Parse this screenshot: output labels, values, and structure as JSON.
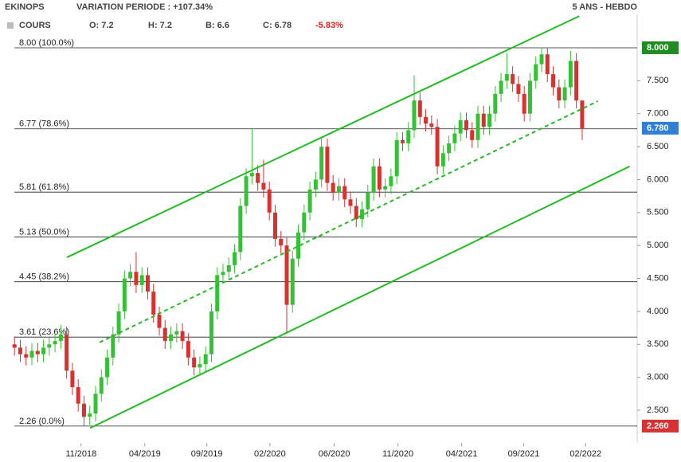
{
  "chart_data": {
    "type": "candlestick",
    "header": {
      "symbol": "EKINOPS",
      "variation": "VARIATION PERIODE : +107.34%",
      "period": "5 ANS - HEBDO",
      "series_label": "COURS",
      "open": "O: 7.2",
      "high": "H: 7.2",
      "low": "B: 6.6",
      "close": "C: 6.78",
      "change": "-5.83%"
    },
    "up_color": "#33c233",
    "down_color": "#d93030",
    "open": [
      3.5,
      3.45,
      3.35,
      3.3,
      3.4,
      3.35,
      3.45,
      3.5,
      3.55,
      3.65,
      3.1,
      2.85,
      2.6,
      2.4,
      2.45,
      2.75,
      3.0,
      3.3,
      3.65,
      4.0,
      4.5,
      4.6,
      4.4,
      4.55,
      4.3,
      3.95,
      3.75,
      3.55,
      3.65,
      3.7,
      3.55,
      3.3,
      3.15,
      3.2,
      3.35,
      4.0,
      4.55,
      4.6,
      4.7,
      4.9,
      5.6,
      6.05,
      6.1,
      5.95,
      5.85,
      5.5,
      5.1,
      5.0,
      4.1,
      4.8,
      5.2,
      5.5,
      5.85,
      6.0,
      6.5,
      5.95,
      5.8,
      5.9,
      5.7,
      5.6,
      5.4,
      5.55,
      5.8,
      6.2,
      5.85,
      5.9,
      6.05,
      6.6,
      6.55,
      6.75,
      7.2,
      6.95,
      6.85,
      6.8,
      6.2,
      6.4,
      6.55,
      6.7,
      6.9,
      6.75,
      6.6,
      7.0,
      6.8,
      7.0,
      7.3,
      7.5,
      7.6,
      7.45,
      7.3,
      7.0,
      7.5,
      7.75,
      7.9,
      7.6,
      7.4,
      7.2,
      7.4,
      7.8,
      7.2
    ],
    "high": [
      3.62,
      3.57,
      3.47,
      3.52,
      3.52,
      3.57,
      3.62,
      3.67,
      3.8,
      3.77,
      3.22,
      2.97,
      2.72,
      2.57,
      2.87,
      3.12,
      3.42,
      3.77,
      4.12,
      4.62,
      4.72,
      4.9,
      4.67,
      4.67,
      4.42,
      4.07,
      3.87,
      3.77,
      3.82,
      3.82,
      3.67,
      3.42,
      3.32,
      3.47,
      4.12,
      4.67,
      4.72,
      4.82,
      5.02,
      5.72,
      6.17,
      6.78,
      6.22,
      6.3,
      5.97,
      5.62,
      5.22,
      5.12,
      4.92,
      5.32,
      5.62,
      5.97,
      6.12,
      6.62,
      6.62,
      6.07,
      6.02,
      6.02,
      5.82,
      5.72,
      5.67,
      5.92,
      6.32,
      6.32,
      6.02,
      6.17,
      6.72,
      6.72,
      6.87,
      7.58,
      7.32,
      7.07,
      6.97,
      6.92,
      6.52,
      6.67,
      6.82,
      7.02,
      7.02,
      6.87,
      7.12,
      7.12,
      7.12,
      7.42,
      7.62,
      7.92,
      7.72,
      7.57,
      7.42,
      7.62,
      7.87,
      8.0,
      8.0,
      7.72,
      7.52,
      7.52,
      7.95,
      7.92,
      7.2
    ],
    "low": [
      3.33,
      3.23,
      3.18,
      3.18,
      3.23,
      3.23,
      3.33,
      3.38,
      3.43,
      2.98,
      2.73,
      2.48,
      2.26,
      2.28,
      2.33,
      2.63,
      2.88,
      3.18,
      3.53,
      3.88,
      4.38,
      4.28,
      4.28,
      4.18,
      3.83,
      3.63,
      3.43,
      3.43,
      3.53,
      3.43,
      3.18,
      3.03,
      3.03,
      3.08,
      3.23,
      3.88,
      4.43,
      4.48,
      4.58,
      4.78,
      5.48,
      5.93,
      5.83,
      5.73,
      5.38,
      4.98,
      4.88,
      3.68,
      3.98,
      4.68,
      5.08,
      5.38,
      5.73,
      5.88,
      5.83,
      5.68,
      5.68,
      5.58,
      5.48,
      5.28,
      5.28,
      5.43,
      5.68,
      5.73,
      5.73,
      5.78,
      5.93,
      6.43,
      6.43,
      6.63,
      6.83,
      6.73,
      6.68,
      6.08,
      6.08,
      6.28,
      6.43,
      6.58,
      6.63,
      6.48,
      6.48,
      6.68,
      6.68,
      6.88,
      7.18,
      7.38,
      7.33,
      7.18,
      6.88,
      6.88,
      7.38,
      7.63,
      7.48,
      7.28,
      7.08,
      7.08,
      7.28,
      7.08,
      6.6
    ],
    "close": [
      3.45,
      3.35,
      3.3,
      3.4,
      3.35,
      3.45,
      3.5,
      3.55,
      3.65,
      3.1,
      2.85,
      2.6,
      2.4,
      2.45,
      2.75,
      3.0,
      3.3,
      3.65,
      4.0,
      4.5,
      4.6,
      4.4,
      4.55,
      4.3,
      3.95,
      3.75,
      3.55,
      3.65,
      3.7,
      3.55,
      3.3,
      3.15,
      3.2,
      3.35,
      4.0,
      4.55,
      4.6,
      4.7,
      4.9,
      5.6,
      6.05,
      6.1,
      5.95,
      5.85,
      5.5,
      5.1,
      5.0,
      4.1,
      4.8,
      5.2,
      5.5,
      5.85,
      6.0,
      6.5,
      5.95,
      5.8,
      5.9,
      5.7,
      5.6,
      5.4,
      5.55,
      5.8,
      6.2,
      5.85,
      5.9,
      6.05,
      6.6,
      6.55,
      6.75,
      7.2,
      6.95,
      6.85,
      6.8,
      6.2,
      6.4,
      6.55,
      6.7,
      6.9,
      6.75,
      6.6,
      7.0,
      6.8,
      7.0,
      7.3,
      7.5,
      7.6,
      7.45,
      7.3,
      7.0,
      7.5,
      7.75,
      7.9,
      7.6,
      7.4,
      7.2,
      7.4,
      7.8,
      7.2,
      6.78
    ],
    "xlim": [
      -2.5,
      107.5
    ],
    "ylim": [
      2.0,
      8.5
    ],
    "xticks": [
      {
        "value": 11.5,
        "label": "11/2018"
      },
      {
        "value": 22.5,
        "label": "04/2019"
      },
      {
        "value": 33.2,
        "label": "09/2019"
      },
      {
        "value": 44.1,
        "label": "02/2020"
      },
      {
        "value": 55.2,
        "label": "06/2020"
      },
      {
        "value": 66.2,
        "label": "11/2020"
      },
      {
        "value": 77.2,
        "label": "04/2021"
      },
      {
        "value": 87.9,
        "label": "09/2021"
      },
      {
        "value": 98.6,
        "label": "02/2022"
      }
    ],
    "yticks": [
      {
        "value": 2.5,
        "label": "2.500"
      },
      {
        "value": 3.0,
        "label": "3.000"
      },
      {
        "value": 3.5,
        "label": "3.500"
      },
      {
        "value": 4.0,
        "label": "4.000"
      },
      {
        "value": 4.5,
        "label": "4.500"
      },
      {
        "value": 5.0,
        "label": "5.000"
      },
      {
        "value": 5.5,
        "label": "5.500"
      },
      {
        "value": 6.0,
        "label": "6.000"
      },
      {
        "value": 6.5,
        "label": "6.500"
      },
      {
        "value": 7.0,
        "label": "7.000"
      },
      {
        "value": 7.5,
        "label": "7.500"
      }
    ],
    "levels": [
      {
        "value": 8.0,
        "label": "8.00 (100.0%)"
      },
      {
        "value": 6.77,
        "label": "6.77 (78.6%)"
      },
      {
        "value": 5.81,
        "label": "5.81 (61.8%)"
      },
      {
        "value": 5.13,
        "label": "5.13 (50.0%)"
      },
      {
        "value": 4.45,
        "label": "4.45 (38.2%)"
      },
      {
        "value": 3.61,
        "label": "3.61 (23.6%)"
      },
      {
        "value": 2.26,
        "label": "2.26 (0.0%)"
      }
    ],
    "badges": [
      {
        "value": 8.0,
        "label": "8.000",
        "color": "#1e8c1e"
      },
      {
        "value": 6.78,
        "label": "6.780",
        "color": "#2f7fd6"
      },
      {
        "value": 2.26,
        "label": "2.260",
        "color": "#d93030"
      }
    ],
    "trend_color": "#22bb22",
    "trendlines": [
      {
        "x": [
          9.05,
          97.5
        ],
        "y": [
          4.82,
          8.48
        ],
        "style": "solid"
      },
      {
        "x": [
          13.04,
          106.2
        ],
        "y": [
          2.23,
          6.2
        ],
        "style": "solid"
      },
      {
        "x": [
          14.7,
          100.7
        ],
        "y": [
          3.53,
          7.19
        ],
        "style": "dashed"
      }
    ]
  }
}
